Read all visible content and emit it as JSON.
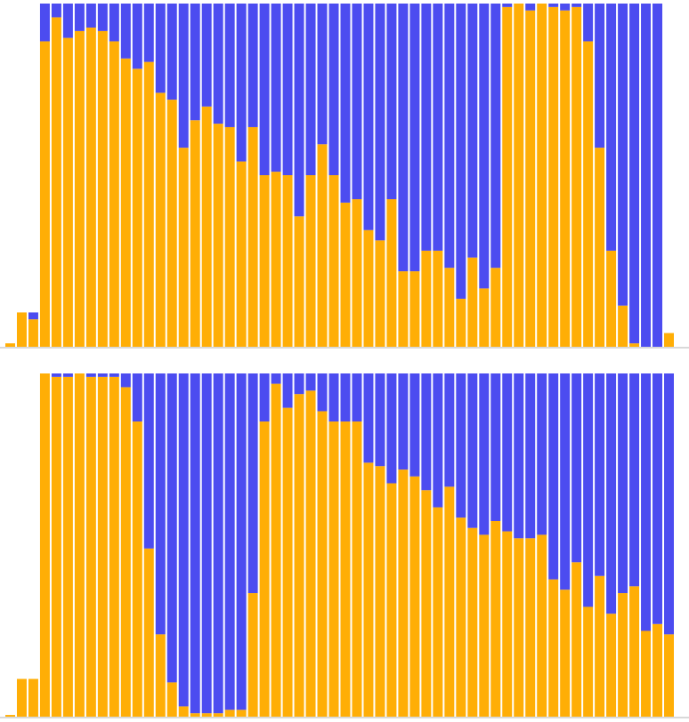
{
  "colors": {
    "series_a": "#FFAE06",
    "series_b": "#4C4CF0",
    "background": "#FFFFFF",
    "baseline": "#D9D9D9"
  },
  "chart_data": [
    {
      "type": "bar",
      "stacked": true,
      "normalized": true,
      "bar_count": 58,
      "ylim": [
        0,
        1
      ],
      "grid": false,
      "legend": "none",
      "title": "",
      "xlabel": "",
      "ylabel": "",
      "totals": [
        0.01,
        0.1,
        0.1,
        1,
        1,
        1,
        1,
        1,
        1,
        1,
        1,
        1,
        1,
        1,
        1,
        1,
        1,
        1,
        1,
        1,
        1,
        1,
        1,
        1,
        1,
        1,
        1,
        1,
        1,
        1,
        1,
        1,
        1,
        1,
        1,
        1,
        1,
        1,
        1,
        1,
        1,
        1,
        1,
        1,
        1,
        1,
        1,
        1,
        1,
        1,
        1,
        1,
        1,
        1,
        1,
        1,
        1,
        0.04
      ],
      "series": [
        {
          "color": "#FFAE06",
          "values": [
            0.01,
            0.1,
            0.08,
            0.89,
            0.96,
            0.9,
            0.92,
            0.93,
            0.92,
            0.89,
            0.84,
            0.81,
            0.83,
            0.74,
            0.72,
            0.58,
            0.66,
            0.7,
            0.65,
            0.64,
            0.54,
            0.64,
            0.5,
            0.51,
            0.5,
            0.38,
            0.5,
            0.59,
            0.5,
            0.42,
            0.43,
            0.34,
            0.31,
            0.43,
            0.22,
            0.22,
            0.28,
            0.28,
            0.23,
            0.14,
            0.26,
            0.17,
            0.23,
            0.99,
            1.0,
            0.98,
            1.0,
            0.99,
            0.98,
            0.99,
            0.89,
            0.58,
            0.28,
            0.12,
            0.01,
            0.0,
            0.0,
            0.04
          ]
        },
        {
          "color": "#4C4CF0",
          "values": [
            0.0,
            0.0,
            0.02,
            0.11,
            0.04,
            0.1,
            0.08,
            0.07,
            0.08,
            0.11,
            0.16,
            0.19,
            0.17,
            0.26,
            0.28,
            0.42,
            0.34,
            0.3,
            0.35,
            0.36,
            0.46,
            0.36,
            0.5,
            0.49,
            0.5,
            0.62,
            0.5,
            0.41,
            0.5,
            0.58,
            0.57,
            0.66,
            0.69,
            0.57,
            0.78,
            0.78,
            0.72,
            0.72,
            0.77,
            0.86,
            0.74,
            0.83,
            0.77,
            0.01,
            0.0,
            0.02,
            0.0,
            0.01,
            0.02,
            0.01,
            0.11,
            0.42,
            0.72,
            0.88,
            0.99,
            1.0,
            1.0,
            0.0
          ]
        }
      ]
    },
    {
      "type": "bar",
      "stacked": true,
      "normalized": true,
      "bar_count": 58,
      "ylim": [
        0,
        1
      ],
      "grid": false,
      "legend": "none",
      "title": "",
      "xlabel": "",
      "ylabel": "",
      "totals": [
        0.005,
        0.11,
        0.11,
        1,
        1,
        1,
        1,
        1,
        1,
        1,
        1,
        1,
        1,
        1,
        1,
        1,
        1,
        1,
        1,
        1,
        1,
        1,
        1,
        1,
        1,
        1,
        1,
        1,
        1,
        1,
        1,
        1,
        1,
        1,
        1,
        1,
        1,
        1,
        1,
        1,
        1,
        1,
        1,
        1,
        1,
        1,
        1,
        1,
        1,
        1,
        1,
        1,
        1,
        1,
        1,
        1,
        1,
        1
      ],
      "series": [
        {
          "color": "#FFAE06",
          "values": [
            0.005,
            0.11,
            0.11,
            1.0,
            0.99,
            0.99,
            1.0,
            0.99,
            0.99,
            0.99,
            0.96,
            0.86,
            0.49,
            0.24,
            0.1,
            0.03,
            0.01,
            0.01,
            0.01,
            0.02,
            0.02,
            0.36,
            0.86,
            0.97,
            0.9,
            0.94,
            0.95,
            0.89,
            0.86,
            0.86,
            0.86,
            0.74,
            0.73,
            0.68,
            0.72,
            0.7,
            0.66,
            0.61,
            0.67,
            0.58,
            0.55,
            0.53,
            0.57,
            0.54,
            0.52,
            0.52,
            0.53,
            0.4,
            0.37,
            0.45,
            0.32,
            0.41,
            0.3,
            0.36,
            0.38,
            0.25,
            0.27,
            0.24
          ]
        },
        {
          "color": "#4C4CF0",
          "values": [
            0.0,
            0.0,
            0.0,
            0.0,
            0.01,
            0.01,
            0.0,
            0.01,
            0.01,
            0.01,
            0.04,
            0.14,
            0.51,
            0.76,
            0.9,
            0.97,
            0.99,
            0.99,
            0.99,
            0.98,
            0.98,
            0.64,
            0.14,
            0.03,
            0.1,
            0.06,
            0.05,
            0.11,
            0.14,
            0.14,
            0.14,
            0.26,
            0.27,
            0.32,
            0.28,
            0.3,
            0.34,
            0.39,
            0.33,
            0.42,
            0.45,
            0.47,
            0.43,
            0.46,
            0.48,
            0.48,
            0.47,
            0.6,
            0.63,
            0.55,
            0.68,
            0.59,
            0.7,
            0.64,
            0.62,
            0.75,
            0.73,
            0.76
          ]
        }
      ]
    }
  ]
}
